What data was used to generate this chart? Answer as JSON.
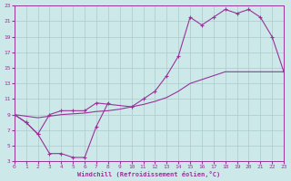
{
  "bg_color": "#cce8e8",
  "grid_color": "#aacccc",
  "line_color": "#993399",
  "xmin": 0,
  "xmax": 23,
  "ymin": 3,
  "ymax": 23,
  "xticks": [
    0,
    1,
    2,
    3,
    4,
    5,
    6,
    7,
    8,
    9,
    10,
    11,
    12,
    13,
    14,
    15,
    16,
    17,
    18,
    19,
    20,
    21,
    22,
    23
  ],
  "yticks": [
    3,
    5,
    7,
    9,
    11,
    13,
    15,
    17,
    19,
    21,
    23
  ],
  "xlabel": "Windchill (Refroidissement éolien,°C)",
  "curve1_x": [
    0,
    1,
    2,
    3,
    4,
    5,
    6,
    7,
    8
  ],
  "curve1_y": [
    9,
    8,
    6.5,
    4,
    4,
    3.5,
    3.5,
    7.5,
    10.5
  ],
  "curve2_x": [
    0,
    1,
    2,
    3,
    4,
    5,
    6,
    7,
    10,
    11,
    12,
    13,
    14,
    15,
    16,
    17,
    18,
    19,
    20,
    21,
    22,
    23
  ],
  "curve2_y": [
    9,
    8,
    6.5,
    9,
    9.5,
    9.5,
    9.5,
    10.5,
    10,
    11,
    12,
    14,
    16.5,
    21.5,
    20.5,
    21.5,
    22.5,
    22,
    22.5,
    21.5,
    19,
    14.5
  ],
  "curve3_x": [
    0,
    1,
    2,
    3,
    4,
    5,
    6,
    7,
    8,
    9,
    10,
    11,
    12,
    13,
    14,
    15,
    16,
    17,
    18,
    19,
    20,
    21,
    22,
    23
  ],
  "curve3_y": [
    9,
    8.8,
    8.6,
    8.8,
    9,
    9.1,
    9.2,
    9.4,
    9.5,
    9.7,
    10,
    10.3,
    10.7,
    11.2,
    12,
    13,
    13.5,
    14,
    14.5,
    14.5,
    14.5,
    14.5,
    14.5,
    14.5
  ]
}
